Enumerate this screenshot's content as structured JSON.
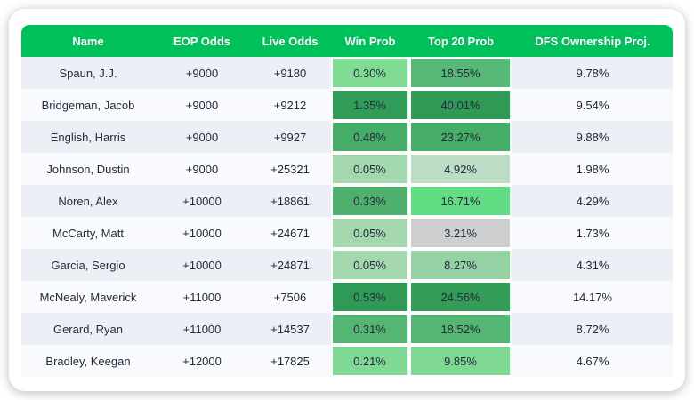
{
  "colors": {
    "header_bg": "#00C05A",
    "header_text": "#FFFFFF",
    "row_odd_bg": "#EDEFF6",
    "row_even_bg": "#F9FAFD",
    "cell_text": "#252A3D",
    "neutral_cell": "#CDCFCE"
  },
  "table": {
    "columns": [
      "Name",
      "EOP Odds",
      "Live Odds",
      "Win Prob",
      "Top 20 Prob",
      "DFS Ownership Proj."
    ],
    "rows": [
      {
        "name": "Spaun, J.J.",
        "eop_odds": "+9000",
        "live_odds": "+9180",
        "win_prob": "0.30%",
        "win_prob_color": "#7FDC92",
        "top20_prob": "18.55%",
        "top20_prob_color": "#57B877",
        "dfs_ownership": "9.78%"
      },
      {
        "name": "Bridgeman, Jacob",
        "eop_odds": "+9000",
        "live_odds": "+9212",
        "win_prob": "1.35%",
        "win_prob_color": "#319C57",
        "top20_prob": "40.01%",
        "top20_prob_color": "#2F9A55",
        "dfs_ownership": "9.54%"
      },
      {
        "name": "English, Harris",
        "eop_odds": "+9000",
        "live_odds": "+9927",
        "win_prob": "0.48%",
        "win_prob_color": "#46AD69",
        "top20_prob": "23.27%",
        "top20_prob_color": "#46AD69",
        "dfs_ownership": "9.88%"
      },
      {
        "name": "Johnson, Dustin",
        "eop_odds": "+9000",
        "live_odds": "+25321",
        "win_prob": "0.05%",
        "win_prob_color": "#A3D7AD",
        "top20_prob": "4.92%",
        "top20_prob_color": "#BCDDC3",
        "dfs_ownership": "1.98%"
      },
      {
        "name": "Noren, Alex",
        "eop_odds": "+10000",
        "live_odds": "+18861",
        "win_prob": "0.33%",
        "win_prob_color": "#4FB06E",
        "top20_prob": "16.71%",
        "top20_prob_color": "#63DD85",
        "dfs_ownership": "4.29%"
      },
      {
        "name": "McCarty, Matt",
        "eop_odds": "+10000",
        "live_odds": "+24671",
        "win_prob": "0.05%",
        "win_prob_color": "#A3D7AD",
        "top20_prob": "3.21%",
        "top20_prob_color": "#CDCFCE",
        "dfs_ownership": "1.73%"
      },
      {
        "name": "Garcia, Sergio",
        "eop_odds": "+10000",
        "live_odds": "+24871",
        "win_prob": "0.05%",
        "win_prob_color": "#A3D7AD",
        "top20_prob": "8.27%",
        "top20_prob_color": "#95D2A3",
        "dfs_ownership": "4.31%"
      },
      {
        "name": "McNealy, Maverick",
        "eop_odds": "+11000",
        "live_odds": "+7506",
        "win_prob": "0.53%",
        "win_prob_color": "#2F9A55",
        "top20_prob": "24.56%",
        "top20_prob_color": "#339D58",
        "dfs_ownership": "14.17%"
      },
      {
        "name": "Gerard, Ryan",
        "eop_odds": "+11000",
        "live_odds": "+14537",
        "win_prob": "0.31%",
        "win_prob_color": "#55B674",
        "top20_prob": "18.52%",
        "top20_prob_color": "#55B674",
        "dfs_ownership": "8.72%"
      },
      {
        "name": "Bradley, Keegan",
        "eop_odds": "+12000",
        "live_odds": "+17825",
        "win_prob": "0.21%",
        "win_prob_color": "#7FD893",
        "top20_prob": "9.85%",
        "top20_prob_color": "#7ED892",
        "dfs_ownership": "4.67%"
      }
    ]
  }
}
